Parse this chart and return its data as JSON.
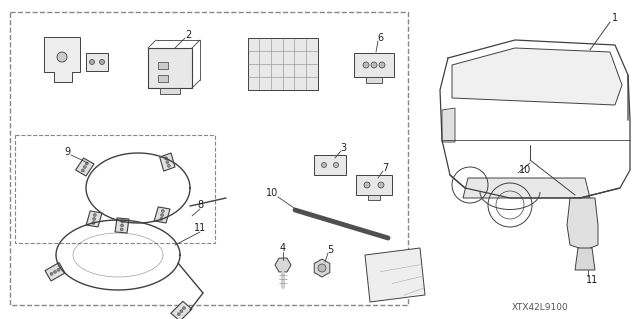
{
  "bg_color": "#ffffff",
  "line_color": "#404040",
  "text_color": "#202020",
  "footnote": "XTX42L9100",
  "fig_width": 6.4,
  "fig_height": 3.19,
  "dpi": 100
}
